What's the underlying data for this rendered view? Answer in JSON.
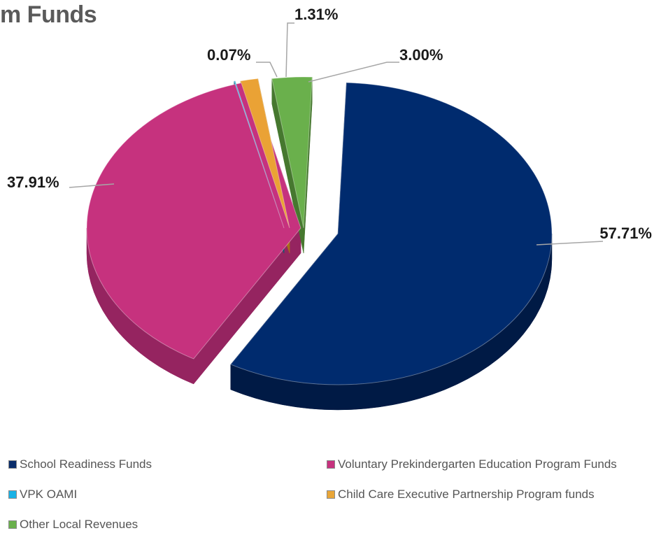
{
  "title": "m Funds",
  "chart_data": {
    "type": "pie",
    "style": "3d-exploded",
    "slices": [
      {
        "name": "School Readiness Funds",
        "value": 57.71,
        "label": "57.71%",
        "color": "#002b6e",
        "side": "#001a45"
      },
      {
        "name": "Voluntary Prekindergarten Education Program Funds",
        "value": 37.91,
        "label": "37.91%",
        "color": "#c6327e",
        "side": "#952460"
      },
      {
        "name": "VPK OAMI",
        "value": 0.07,
        "label": "0.07%",
        "color": "#1bb3e6",
        "side": "#0d5a73"
      },
      {
        "name": "Child Care Executive Partnership Program funds",
        "value": 1.31,
        "label": "1.31%",
        "color": "#eaa235",
        "side": "#a86f18"
      },
      {
        "name": "Other Local Revenues",
        "value": 3.0,
        "label": "3.00%",
        "color": "#6ab04c",
        "side": "#46782f"
      }
    ],
    "legend_position": "bottom"
  },
  "legend": [
    {
      "label": "School Readiness Funds",
      "color": "#0a2d6a"
    },
    {
      "label": "Voluntary Prekindergarten Education Program Funds",
      "color": "#c6327e"
    },
    {
      "label": "VPK OAMI",
      "color": "#19b2e6"
    },
    {
      "label": "Child Care Executive Partnership Program funds",
      "color": "#e9a638"
    },
    {
      "label": "Other Local Revenues",
      "color": "#6ab04c"
    }
  ]
}
